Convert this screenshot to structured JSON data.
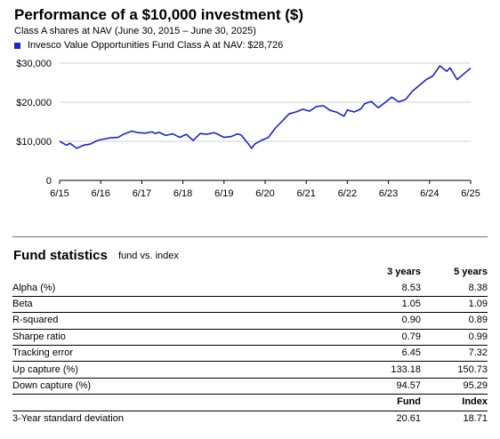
{
  "chart_data": {
    "type": "line",
    "title": "Performance of a $10,000 investment ($)",
    "subtitle": "Class A shares at NAV (June 30, 2015 – June 30, 2025)",
    "x_ticks": [
      "6/15",
      "6/16",
      "6/17",
      "6/18",
      "6/19",
      "6/20",
      "6/21",
      "6/22",
      "6/23",
      "6/24",
      "6/25"
    ],
    "y_ticks": [
      "0",
      "$10,000",
      "$20,000",
      "$30,000"
    ],
    "ylim": [
      0,
      30000
    ],
    "xlim": [
      2015.5,
      2025.5
    ],
    "grid": "horizontal",
    "series": [
      {
        "name": "Invesco Value Opportunities Fund Class A at NAV: $28,726",
        "color": "#1b24c9",
        "x": [
          2015.5,
          2015.67,
          2015.75,
          2015.92,
          2016.08,
          2016.25,
          2016.42,
          2016.58,
          2016.75,
          2016.92,
          2017.08,
          2017.25,
          2017.42,
          2017.58,
          2017.75,
          2017.83,
          2017.92,
          2018.08,
          2018.25,
          2018.42,
          2018.58,
          2018.75,
          2018.92,
          2019.08,
          2019.25,
          2019.33,
          2019.5,
          2019.67,
          2019.83,
          2019.92,
          2020.08,
          2020.17,
          2020.25,
          2020.42,
          2020.58,
          2020.75,
          2020.92,
          2021.08,
          2021.25,
          2021.42,
          2021.58,
          2021.75,
          2021.92,
          2022.08,
          2022.25,
          2022.42,
          2022.5,
          2022.67,
          2022.83,
          2022.92,
          2023.08,
          2023.25,
          2023.42,
          2023.58,
          2023.75,
          2023.92,
          2024.08,
          2024.25,
          2024.42,
          2024.58,
          2024.75,
          2024.92,
          2025.0,
          2025.17,
          2025.33,
          2025.5
        ],
        "y": [
          10000,
          9000,
          9500,
          8200,
          9000,
          9300,
          10200,
          10600,
          10900,
          11000,
          11900,
          12600,
          12200,
          12100,
          12400,
          12000,
          12300,
          11500,
          11900,
          11000,
          11800,
          10200,
          12000,
          11800,
          12200,
          11900,
          11000,
          11200,
          11900,
          11600,
          9500,
          8200,
          9300,
          10300,
          11000,
          13400,
          15200,
          17000,
          17500,
          18200,
          17700,
          18900,
          19100,
          17900,
          17400,
          16400,
          18000,
          17500,
          18300,
          19600,
          20200,
          18600,
          19900,
          21300,
          20100,
          20700,
          22800,
          24300,
          25800,
          26700,
          29300,
          27900,
          28800,
          25800,
          27200,
          28726
        ]
      }
    ]
  },
  "legend": {
    "label": "Invesco Value Opportunities Fund Class A at NAV: $28,726",
    "color": "#1b24c9"
  },
  "stats": {
    "title": "Fund statistics",
    "subtitle": "fund vs. index",
    "col_3y": "3 years",
    "col_5y": "5 years",
    "rows": [
      {
        "label": "Alpha (%)",
        "v3": "8.53",
        "v5": "8.38"
      },
      {
        "label": "Beta",
        "v3": "1.05",
        "v5": "1.09"
      },
      {
        "label": "R-squared",
        "v3": "0.90",
        "v5": "0.89"
      },
      {
        "label": "Sharpe ratio",
        "v3": "0.79",
        "v5": "0.99"
      },
      {
        "label": "Tracking error",
        "v3": "6.45",
        "v5": "7.32"
      },
      {
        "label": "Up capture (%)",
        "v3": "133.18",
        "v5": "150.73"
      },
      {
        "label": "Down capture (%)",
        "v3": "94.57",
        "v5": "95.29"
      }
    ],
    "col_fund": "Fund",
    "col_index": "Index",
    "std_label": "3-Year standard deviation",
    "std_fund": "20.61",
    "std_index": "18.71"
  }
}
